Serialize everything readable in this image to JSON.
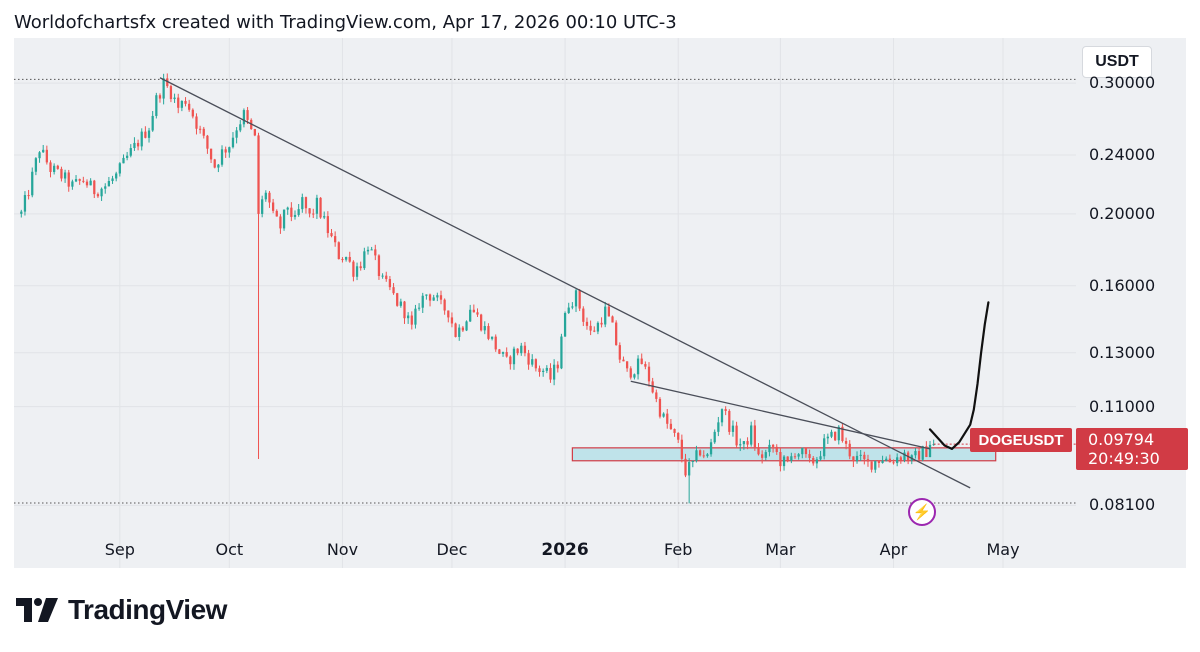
{
  "header": {
    "text": "Worldofchartsfx created with TradingView.com, Apr 17, 2026 00:10 UTC-3"
  },
  "currency_button": {
    "label": "USDT"
  },
  "symbol": {
    "name": "DOGEUSDT",
    "last_price": "0.09794",
    "countdown": "20:49:30"
  },
  "footer": {
    "brand": "TradingView"
  },
  "colors": {
    "up": "#26a69a",
    "down": "#ef5350",
    "accent_red": "#d13b45",
    "zone_fill": "#bfe3ea",
    "panel": "#eef0f3",
    "flash": "#9c27b0"
  },
  "chart_data": {
    "type": "candlestick",
    "symbol": "DOGEUSDT",
    "quote_currency": "USDT",
    "scale": "log",
    "y_ticks": [
      {
        "value": 0.3,
        "label": "0.30000"
      },
      {
        "value": 0.24,
        "label": "0.24000"
      },
      {
        "value": 0.2,
        "label": "0.20000"
      },
      {
        "value": 0.16,
        "label": "0.16000"
      },
      {
        "value": 0.13,
        "label": "0.13000"
      },
      {
        "value": 0.11,
        "label": "0.11000"
      },
      {
        "value": 0.081,
        "label": "0.08100"
      }
    ],
    "x_ticks": [
      {
        "label": "Sep",
        "day": 0
      },
      {
        "label": "Oct",
        "day": 30
      },
      {
        "label": "Nov",
        "day": 61
      },
      {
        "label": "Dec",
        "day": 91
      },
      {
        "label": "2026",
        "day": 122,
        "bold": true
      },
      {
        "label": "Feb",
        "day": 153
      },
      {
        "label": "Mar",
        "day": 181
      },
      {
        "label": "Apr",
        "day": 212
      },
      {
        "label": "May",
        "day": 242
      }
    ],
    "close_path": [
      [
        -27,
        0.2
      ],
      [
        -25,
        0.215
      ],
      [
        -22,
        0.245
      ],
      [
        -19,
        0.23
      ],
      [
        -16,
        0.225
      ],
      [
        -13,
        0.218
      ],
      [
        -10,
        0.222
      ],
      [
        -7,
        0.215
      ],
      [
        -4,
        0.218
      ],
      [
        -1,
        0.225
      ],
      [
        2,
        0.238
      ],
      [
        5,
        0.25
      ],
      [
        8,
        0.262
      ],
      [
        10,
        0.285
      ],
      [
        12,
        0.3
      ],
      [
        14,
        0.292
      ],
      [
        16,
        0.278
      ],
      [
        18,
        0.285
      ],
      [
        20,
        0.272
      ],
      [
        22,
        0.258
      ],
      [
        24,
        0.245
      ],
      [
        26,
        0.232
      ],
      [
        28,
        0.242
      ],
      [
        30,
        0.248
      ],
      [
        32,
        0.262
      ],
      [
        34,
        0.272
      ],
      [
        36,
        0.258
      ],
      [
        37,
        0.252
      ],
      [
        38,
        0.2
      ],
      [
        40,
        0.215
      ],
      [
        42,
        0.198
      ],
      [
        44,
        0.192
      ],
      [
        46,
        0.205
      ],
      [
        48,
        0.195
      ],
      [
        50,
        0.208
      ],
      [
        52,
        0.198
      ],
      [
        54,
        0.206
      ],
      [
        56,
        0.195
      ],
      [
        58,
        0.185
      ],
      [
        60,
        0.176
      ],
      [
        62,
        0.175
      ],
      [
        64,
        0.168
      ],
      [
        66,
        0.172
      ],
      [
        68,
        0.182
      ],
      [
        70,
        0.172
      ],
      [
        72,
        0.162
      ],
      [
        74,
        0.158
      ],
      [
        76,
        0.152
      ],
      [
        78,
        0.148
      ],
      [
        80,
        0.14
      ],
      [
        82,
        0.152
      ],
      [
        84,
        0.156
      ],
      [
        86,
        0.155
      ],
      [
        88,
        0.15
      ],
      [
        90,
        0.148
      ],
      [
        92,
        0.138
      ],
      [
        94,
        0.142
      ],
      [
        96,
        0.15
      ],
      [
        98,
        0.145
      ],
      [
        100,
        0.14
      ],
      [
        102,
        0.135
      ],
      [
        104,
        0.13
      ],
      [
        106,
        0.126
      ],
      [
        108,
        0.13
      ],
      [
        110,
        0.132
      ],
      [
        112,
        0.128
      ],
      [
        114,
        0.124
      ],
      [
        116,
        0.123
      ],
      [
        118,
        0.12
      ],
      [
        120,
        0.126
      ],
      [
        121,
        0.138
      ],
      [
        123,
        0.152
      ],
      [
        125,
        0.155
      ],
      [
        127,
        0.145
      ],
      [
        129,
        0.138
      ],
      [
        131,
        0.142
      ],
      [
        133,
        0.148
      ],
      [
        135,
        0.14
      ],
      [
        137,
        0.128
      ],
      [
        139,
        0.122
      ],
      [
        141,
        0.124
      ],
      [
        143,
        0.126
      ],
      [
        145,
        0.12
      ],
      [
        147,
        0.112
      ],
      [
        149,
        0.106
      ],
      [
        151,
        0.102
      ],
      [
        153,
        0.098
      ],
      [
        155,
        0.09
      ],
      [
        157,
        0.092
      ],
      [
        159,
        0.096
      ],
      [
        161,
        0.094
      ],
      [
        163,
        0.102
      ],
      [
        165,
        0.11
      ],
      [
        167,
        0.104
      ],
      [
        169,
        0.099
      ],
      [
        171,
        0.097
      ],
      [
        173,
        0.102
      ],
      [
        175,
        0.094
      ],
      [
        177,
        0.095
      ],
      [
        179,
        0.097
      ],
      [
        181,
        0.093
      ],
      [
        183,
        0.092
      ],
      [
        185,
        0.096
      ],
      [
        187,
        0.095
      ],
      [
        189,
        0.092
      ],
      [
        191,
        0.094
      ],
      [
        193,
        0.098
      ],
      [
        195,
        0.1
      ],
      [
        197,
        0.102
      ],
      [
        199,
        0.097
      ],
      [
        201,
        0.094
      ],
      [
        203,
        0.093
      ],
      [
        205,
        0.092
      ],
      [
        207,
        0.093
      ],
      [
        209,
        0.094
      ],
      [
        211,
        0.093
      ],
      [
        213,
        0.094
      ],
      [
        215,
        0.095
      ],
      [
        217,
        0.093
      ],
      [
        219,
        0.095
      ],
      [
        221,
        0.096
      ],
      [
        222,
        0.0985
      ],
      [
        223,
        0.0979
      ]
    ],
    "spike_low": {
      "day": 38,
      "price": 0.0935
    },
    "feb_wick_low": {
      "day": 156,
      "price": 0.0815
    },
    "dotted_levels": [
      0.3035,
      0.0816
    ],
    "trendlines": [
      {
        "name": "main-downtrend",
        "from": {
          "day": 11,
          "price": 0.305
        },
        "to": {
          "day": 233,
          "price": 0.0855
        }
      },
      {
        "name": "lower-trendline",
        "from": {
          "day": 140,
          "price": 0.119
        },
        "to": {
          "day": 222,
          "price": 0.0965
        }
      }
    ],
    "support_zone": {
      "from_day": 124,
      "to_day": 240,
      "top": 0.0968,
      "bottom": 0.093
    },
    "projection_path": [
      [
        222,
        0.1025
      ],
      [
        226,
        0.0975
      ],
      [
        228,
        0.0965
      ],
      [
        230,
        0.0985
      ],
      [
        233,
        0.104
      ],
      [
        234,
        0.109
      ],
      [
        235,
        0.118
      ],
      [
        236,
        0.13
      ],
      [
        237,
        0.142
      ],
      [
        238,
        0.152
      ]
    ],
    "last_price": 0.09794,
    "xlim": [
      -29,
      262
    ],
    "ylim": [
      0.0755,
      0.345
    ]
  }
}
